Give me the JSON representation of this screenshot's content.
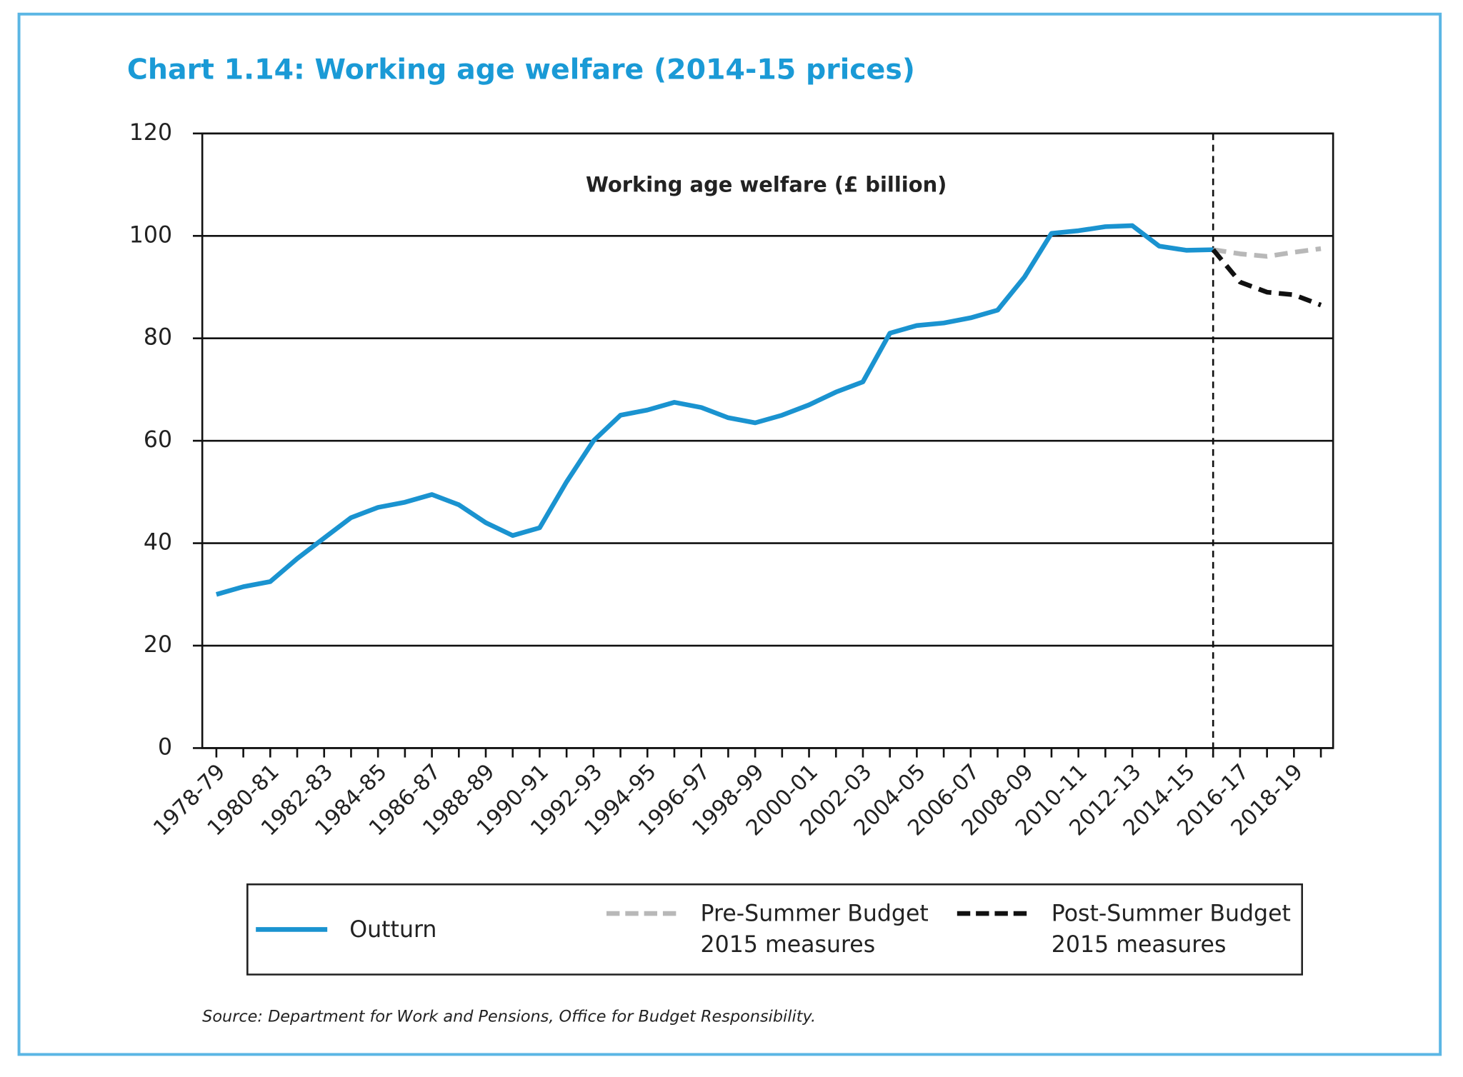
{
  "chart_data": {
    "type": "line",
    "title": "Chart 1.14: Working age welfare (2014-15 prices)",
    "subtitle": "Working age welfare (£ billion)",
    "source": "Source: Department for Work and Pensions, Office for Budget Responsibility.",
    "categories": [
      "1978-79",
      null,
      "1980-81",
      null,
      "1982-83",
      null,
      "1984-85",
      null,
      "1986-87",
      null,
      "1988-89",
      null,
      "1990-91",
      null,
      "1992-93",
      null,
      "1994-95",
      null,
      "1996-97",
      null,
      "1998-99",
      null,
      "2000-01",
      null,
      "2002-03",
      null,
      "2004-05",
      null,
      "2006-07",
      null,
      "2008-09",
      null,
      "2010-11",
      null,
      "2012-13",
      null,
      "2014-15",
      null,
      "2016-17",
      null,
      "2018-19",
      null
    ],
    "series": [
      {
        "name": "Outturn",
        "color": "#1a93d0",
        "dash": "solid",
        "values": [
          30,
          31.5,
          32.5,
          37,
          41,
          45,
          47,
          48,
          49.5,
          47.5,
          44,
          41.5,
          43,
          52,
          60,
          65,
          66,
          67.5,
          66.5,
          64.5,
          63.5,
          65,
          67,
          69.5,
          71.5,
          81,
          82.5,
          83,
          84,
          85.5,
          92,
          100.5,
          101,
          101.8,
          102,
          98,
          97.2,
          97.3,
          null,
          null,
          null,
          null
        ]
      },
      {
        "name": "Pre-Summer Budget 2015 measures",
        "color": "#b8b8b8",
        "dash": "dashed",
        "values": [
          null,
          null,
          null,
          null,
          null,
          null,
          null,
          null,
          null,
          null,
          null,
          null,
          null,
          null,
          null,
          null,
          null,
          null,
          null,
          null,
          null,
          null,
          null,
          null,
          null,
          null,
          null,
          null,
          null,
          null,
          null,
          null,
          null,
          null,
          null,
          null,
          null,
          97.3,
          96.5,
          96,
          96.8,
          97.5
        ]
      },
      {
        "name": "Post-Summer Budget 2015 measures",
        "color": "#111111",
        "dash": "dashed",
        "values": [
          null,
          null,
          null,
          null,
          null,
          null,
          null,
          null,
          null,
          null,
          null,
          null,
          null,
          null,
          null,
          null,
          null,
          null,
          null,
          null,
          null,
          null,
          null,
          null,
          null,
          null,
          null,
          null,
          null,
          null,
          null,
          null,
          null,
          null,
          null,
          null,
          null,
          97.3,
          91,
          89,
          88.5,
          86.5
        ]
      }
    ],
    "ylim": [
      0,
      120
    ],
    "yticks": [
      0,
      20,
      40,
      60,
      80,
      100,
      120
    ],
    "grid": true,
    "legend": "bottom"
  }
}
